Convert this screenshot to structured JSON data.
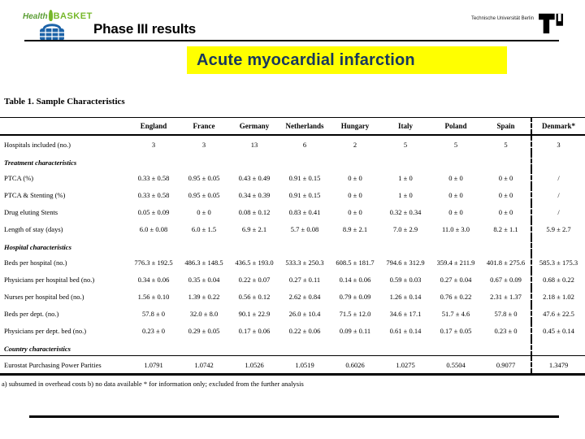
{
  "header": {
    "title": "Phase III results",
    "affiliation": "Technische Universität Berlin",
    "logo": {
      "word1": "Health",
      "word2": "BASKET"
    }
  },
  "banner": {
    "text": "Acute myocardial infarction",
    "bg_color": "#FFFF00",
    "text_color": "#17375E"
  },
  "colors": {
    "logo_green": "#76B82A",
    "logo_blue": "#1C63A8",
    "rule_black": "#000000"
  },
  "table": {
    "title": "Table 1. Sample Characteristics",
    "columns": [
      "England",
      "France",
      "Germany",
      "Netherlands",
      "Hungary",
      "Italy",
      "Poland",
      "Spain",
      "Denmark*"
    ],
    "rows": [
      {
        "type": "data",
        "label": "Hospitals included (no.)",
        "values": [
          "3",
          "3",
          "13",
          "6",
          "2",
          "5",
          "5",
          "5",
          "3"
        ]
      },
      {
        "type": "section",
        "label": "Treatment characteristics"
      },
      {
        "type": "data",
        "label": "PTCA (%)",
        "values": [
          "0.33 ± 0.58",
          "0.95 ± 0.05",
          "0.43 ± 0.49",
          "0.91 ± 0.15",
          "0 ± 0",
          "1 ± 0",
          "0 ± 0",
          "0 ± 0",
          "/"
        ]
      },
      {
        "type": "data",
        "label": "PTCA & Stenting (%)",
        "values": [
          "0.33 ± 0.58",
          "0.95 ± 0.05",
          "0.34 ± 0.39",
          "0.91 ± 0.15",
          "0 ± 0",
          "1 ± 0",
          "0 ± 0",
          "0 ± 0",
          "/"
        ]
      },
      {
        "type": "data",
        "label": "Drug eluting Stents",
        "values": [
          "0.05 ± 0.09",
          "0 ± 0",
          "0.08 ± 0.12",
          "0.83 ± 0.41",
          "0 ± 0",
          "0.32 ± 0.34",
          "0 ± 0",
          "0 ± 0",
          "/"
        ]
      },
      {
        "type": "data",
        "label": "Length of stay (days)",
        "values": [
          "6.0 ± 0.08",
          "6.0 ± 1.5",
          "6.9 ± 2.1",
          "5.7 ± 0.08",
          "8.9 ± 2.1",
          "7.0 ± 2.9",
          "11.0 ± 3.0",
          "8.2 ± 1.1",
          "5.9 ± 2.7"
        ]
      },
      {
        "type": "section",
        "label": "Hospital characteristics"
      },
      {
        "type": "data",
        "label": "Beds per hospital (no.)",
        "values": [
          "776.3 ± 192.5",
          "486.3 ± 148.5",
          "436.5 ± 193.0",
          "533.3 ± 250.3",
          "608.5 ± 181.7",
          "794.6 ± 312.9",
          "359.4 ± 211.9",
          "401.8 ± 275.6",
          "585.3 ± 175.3"
        ]
      },
      {
        "type": "data",
        "label": "Physicians per hospital bed (no.)",
        "values": [
          "0.34 ± 0.06",
          "0.35 ± 0.04",
          "0.22 ± 0.07",
          "0.27 ± 0.11",
          "0.14 ± 0.06",
          "0.59 ± 0.03",
          "0.27 ± 0.04",
          "0.67 ± 0.09",
          "0.68 ± 0.22"
        ]
      },
      {
        "type": "data",
        "label": "Nurses per hospital bed (no.)",
        "values": [
          "1.56 ± 0.10",
          "1.39 ± 0.22",
          "0.56 ± 0.12",
          "2.62 ± 0.84",
          "0.79 ± 0.09",
          "1.26 ± 0.14",
          "0.76 ± 0.22",
          "2.31 ± 1.37",
          "2.18 ± 1.02"
        ]
      },
      {
        "type": "data",
        "label": "Beds per dept. (no.)",
        "values": [
          "57.8 ± 0",
          "32.0 ± 8.0",
          "90.1 ± 22.9",
          "26.0 ± 10.4",
          "71.5 ± 12.0",
          "34.6 ± 17.1",
          "51.7 ± 4.6",
          "57.8 ± 0",
          "47.6 ± 22.5"
        ]
      },
      {
        "type": "data",
        "label": "Physicians per dept. bed (no.)",
        "values": [
          "0.23 ± 0",
          "0.29 ± 0.05",
          "0.17 ± 0.06",
          "0.22 ± 0.06",
          "0.09 ± 0.11",
          "0.61 ± 0.14",
          "0.17 ± 0.05",
          "0.23 ± 0",
          "0.45 ± 0.14"
        ]
      },
      {
        "type": "section",
        "label": "Country characteristics"
      },
      {
        "type": "data",
        "label": "Eurostat Purchasing Power Parities",
        "values": [
          "1.0791",
          "1.0742",
          "1.0526",
          "1.0519",
          "0.6026",
          "1.0275",
          "0.5504",
          "0.9077",
          "1.3479"
        ]
      }
    ],
    "footnote": "a) subsumed in overhead costs  b) no data available  * for information only; excluded from the further analysis"
  }
}
